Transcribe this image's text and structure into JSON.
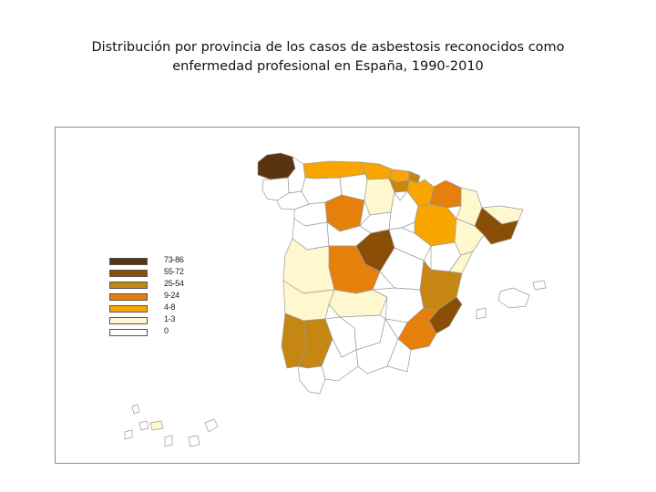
{
  "title_line1": "Distribución por provincia de los casos de asbestosis reconocidos como",
  "title_line2": "enfermedad profesional en España, 1990-2010",
  "colors": {
    "c0": "#ffffff",
    "c1_3": "#fff8cf",
    "c4_8": "#f8a500",
    "c9_24": "#e5800c",
    "c25_54": "#c58612",
    "c55_72": "#8a4e06",
    "c73_86": "#5a3410"
  },
  "legend": [
    {
      "label": "73-86",
      "color": "#5a3410"
    },
    {
      "label": "55-72",
      "color": "#8a4e06"
    },
    {
      "label": "25-54",
      "color": "#c58612"
    },
    {
      "label": "9-24",
      "color": "#e5800c"
    },
    {
      "label": "4-8",
      "color": "#f8a500"
    },
    {
      "label": "1-3",
      "color": "#fff8cf"
    },
    {
      "label": "0",
      "color": "#ffffff"
    }
  ]
}
